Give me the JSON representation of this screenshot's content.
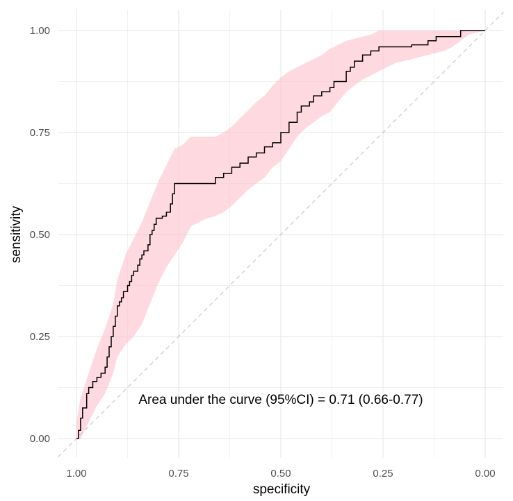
{
  "chart_data": {
    "type": "line",
    "xlabel": "specificity",
    "ylabel": "sensitivity",
    "xlim": [
      1.0,
      0.0
    ],
    "ylim": [
      0.0,
      1.0
    ],
    "x_reversed": true,
    "x_ticks": [
      "1.00",
      "0.75",
      "0.50",
      "0.25",
      "0.00"
    ],
    "x_tick_values": [
      1.0,
      0.75,
      0.5,
      0.25,
      0.0
    ],
    "y_ticks": [
      "0.00",
      "0.25",
      "0.50",
      "0.75",
      "1.00"
    ],
    "y_tick_values": [
      0.0,
      0.25,
      0.5,
      0.75,
      1.0
    ],
    "grid": true,
    "annotation": "Area under the curve (95%CI) = 0.71 (0.66-0.77)",
    "colors": {
      "curve": "#000000",
      "ci_band": "#ffc0cb",
      "reference": "#c8c8c8",
      "grid": "#ebebeb"
    },
    "series": [
      {
        "type": "step",
        "x": [
          1.0,
          0.995,
          0.99,
          0.985,
          0.975,
          0.97,
          0.96,
          0.95,
          0.94,
          0.93,
          0.925,
          0.92,
          0.915,
          0.91,
          0.905,
          0.9,
          0.895,
          0.89,
          0.885,
          0.875,
          0.87,
          0.865,
          0.86,
          0.85,
          0.845,
          0.84,
          0.835,
          0.825,
          0.82,
          0.815,
          0.81,
          0.805,
          0.8,
          0.795,
          0.79,
          0.78,
          0.77,
          0.765,
          0.76,
          0.755,
          0.75,
          0.745,
          0.74,
          0.73,
          0.72,
          0.7,
          0.68,
          0.66,
          0.64,
          0.62,
          0.6,
          0.58,
          0.56,
          0.54,
          0.52,
          0.51,
          0.5,
          0.48,
          0.46,
          0.45,
          0.43,
          0.42,
          0.4,
          0.38,
          0.37,
          0.35,
          0.345,
          0.34,
          0.33,
          0.32,
          0.3,
          0.28,
          0.26,
          0.22,
          0.18,
          0.14,
          0.12,
          0.1,
          0.08,
          0.06,
          0.04,
          0.02,
          0.0
        ],
        "y": [
          0.0,
          0.02,
          0.05,
          0.075,
          0.11,
          0.125,
          0.14,
          0.15,
          0.16,
          0.175,
          0.2,
          0.225,
          0.25,
          0.275,
          0.3,
          0.325,
          0.335,
          0.345,
          0.36,
          0.375,
          0.385,
          0.4,
          0.41,
          0.425,
          0.44,
          0.45,
          0.46,
          0.475,
          0.5,
          0.51,
          0.525,
          0.54,
          0.54,
          0.54,
          0.545,
          0.555,
          0.575,
          0.6,
          0.625,
          0.625,
          0.625,
          0.625,
          0.625,
          0.625,
          0.625,
          0.625,
          0.625,
          0.64,
          0.65,
          0.665,
          0.675,
          0.69,
          0.7,
          0.715,
          0.725,
          0.725,
          0.75,
          0.775,
          0.8,
          0.815,
          0.825,
          0.84,
          0.85,
          0.86,
          0.875,
          0.875,
          0.875,
          0.9,
          0.91,
          0.925,
          0.94,
          0.95,
          0.96,
          0.96,
          0.965,
          0.975,
          0.985,
          0.985,
          0.985,
          1.0,
          1.0,
          1.0,
          1.0
        ]
      },
      {
        "type": "band",
        "x": [
          1.0,
          0.99,
          0.97,
          0.95,
          0.93,
          0.91,
          0.9,
          0.88,
          0.86,
          0.84,
          0.82,
          0.8,
          0.78,
          0.76,
          0.74,
          0.73,
          0.72,
          0.71,
          0.7,
          0.68,
          0.66,
          0.64,
          0.62,
          0.6,
          0.58,
          0.56,
          0.54,
          0.52,
          0.5,
          0.48,
          0.46,
          0.44,
          0.42,
          0.4,
          0.38,
          0.36,
          0.34,
          0.32,
          0.3,
          0.28,
          0.26,
          0.24,
          0.22,
          0.2,
          0.18,
          0.16,
          0.14,
          0.12,
          0.1,
          0.08,
          0.06,
          0.04,
          0.02,
          0.0
        ],
        "upper": [
          0.04,
          0.1,
          0.16,
          0.22,
          0.27,
          0.33,
          0.39,
          0.45,
          0.49,
          0.53,
          0.58,
          0.63,
          0.67,
          0.71,
          0.72,
          0.73,
          0.74,
          0.74,
          0.74,
          0.74,
          0.74,
          0.75,
          0.765,
          0.785,
          0.805,
          0.825,
          0.84,
          0.865,
          0.885,
          0.9,
          0.91,
          0.92,
          0.93,
          0.94,
          0.955,
          0.965,
          0.975,
          0.98,
          0.985,
          0.99,
          1.0,
          1.0,
          1.0,
          1.0,
          1.0,
          1.0,
          1.0,
          1.0,
          1.0,
          1.0,
          1.0,
          1.0,
          1.0,
          1.0
        ],
        "lower": [
          0.0,
          0.0,
          0.04,
          0.08,
          0.11,
          0.16,
          0.2,
          0.23,
          0.25,
          0.28,
          0.33,
          0.38,
          0.42,
          0.45,
          0.48,
          0.5,
          0.52,
          0.525,
          0.53,
          0.54,
          0.545,
          0.555,
          0.57,
          0.59,
          0.61,
          0.625,
          0.64,
          0.665,
          0.68,
          0.71,
          0.74,
          0.76,
          0.775,
          0.79,
          0.8,
          0.825,
          0.85,
          0.865,
          0.88,
          0.89,
          0.9,
          0.91,
          0.92,
          0.925,
          0.93,
          0.935,
          0.94,
          0.945,
          0.95,
          0.96,
          0.975,
          0.99,
          0.995,
          1.0
        ]
      }
    ]
  }
}
